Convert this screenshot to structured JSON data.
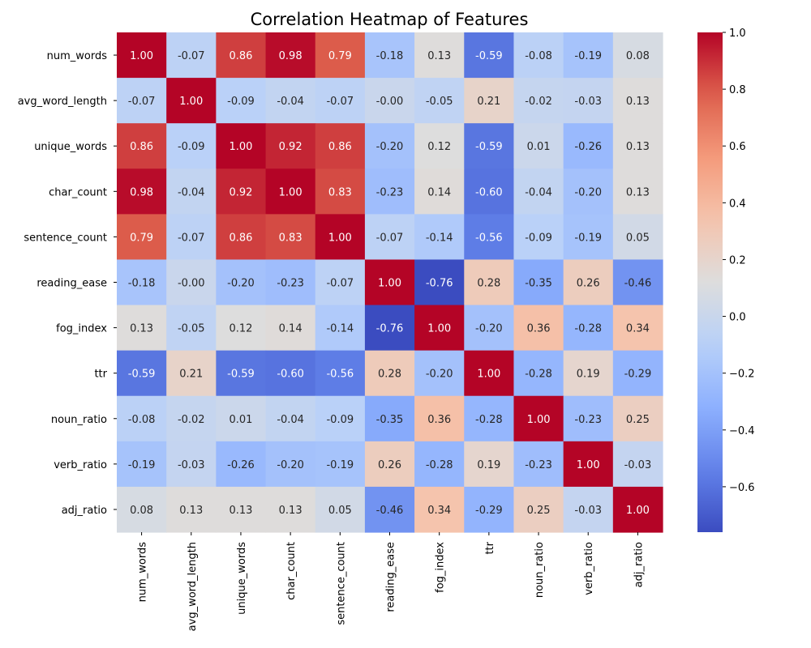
{
  "chart_data": {
    "type": "heatmap",
    "title": "Correlation Heatmap of Features",
    "xlabel": "",
    "ylabel": "",
    "colormap": "coolwarm",
    "rows": [
      "num_words",
      "avg_word_length",
      "unique_words",
      "char_count",
      "sentence_count",
      "reading_ease",
      "fog_index",
      "ttr",
      "noun_ratio",
      "verb_ratio",
      "adj_ratio"
    ],
    "columns": [
      "num_words",
      "avg_word_length",
      "unique_words",
      "char_count",
      "sentence_count",
      "reading_ease",
      "fog_index",
      "ttr",
      "noun_ratio",
      "verb_ratio",
      "adj_ratio"
    ],
    "values": [
      [
        1.0,
        -0.07,
        0.86,
        0.98,
        0.79,
        -0.18,
        0.13,
        -0.59,
        -0.08,
        -0.19,
        0.08
      ],
      [
        -0.07,
        1.0,
        -0.09,
        -0.04,
        -0.07,
        -0.0,
        -0.05,
        0.21,
        -0.02,
        -0.03,
        0.13
      ],
      [
        0.86,
        -0.09,
        1.0,
        0.92,
        0.86,
        -0.2,
        0.12,
        -0.59,
        0.01,
        -0.26,
        0.13
      ],
      [
        0.98,
        -0.04,
        0.92,
        1.0,
        0.83,
        -0.23,
        0.14,
        -0.6,
        -0.04,
        -0.2,
        0.13
      ],
      [
        0.79,
        -0.07,
        0.86,
        0.83,
        1.0,
        -0.07,
        -0.14,
        -0.56,
        -0.09,
        -0.19,
        0.05
      ],
      [
        -0.18,
        -0.0,
        -0.2,
        -0.23,
        -0.07,
        1.0,
        -0.76,
        0.28,
        -0.35,
        0.26,
        -0.46
      ],
      [
        0.13,
        -0.05,
        0.12,
        0.14,
        -0.14,
        -0.76,
        1.0,
        -0.2,
        0.36,
        -0.28,
        0.34
      ],
      [
        -0.59,
        0.21,
        -0.59,
        -0.6,
        -0.56,
        0.28,
        -0.2,
        1.0,
        -0.28,
        0.19,
        -0.29
      ],
      [
        -0.08,
        -0.02,
        0.01,
        -0.04,
        -0.09,
        -0.35,
        0.36,
        -0.28,
        1.0,
        -0.23,
        0.25
      ],
      [
        -0.19,
        -0.03,
        -0.26,
        -0.2,
        -0.19,
        0.26,
        -0.28,
        0.19,
        -0.23,
        1.0,
        -0.03
      ],
      [
        0.08,
        0.13,
        0.13,
        0.13,
        0.05,
        -0.46,
        0.34,
        -0.29,
        0.25,
        -0.03,
        1.0
      ]
    ],
    "cell_text": [
      [
        "1.00",
        "-0.07",
        "0.86",
        "0.98",
        "0.79",
        "-0.18",
        "0.13",
        "-0.59",
        "-0.08",
        "-0.19",
        "0.08"
      ],
      [
        "-0.07",
        "1.00",
        "-0.09",
        "-0.04",
        "-0.07",
        "-0.00",
        "-0.05",
        "0.21",
        "-0.02",
        "-0.03",
        "0.13"
      ],
      [
        "0.86",
        "-0.09",
        "1.00",
        "0.92",
        "0.86",
        "-0.20",
        "0.12",
        "-0.59",
        "0.01",
        "-0.26",
        "0.13"
      ],
      [
        "0.98",
        "-0.04",
        "0.92",
        "1.00",
        "0.83",
        "-0.23",
        "0.14",
        "-0.60",
        "-0.04",
        "-0.20",
        "0.13"
      ],
      [
        "0.79",
        "-0.07",
        "0.86",
        "0.83",
        "1.00",
        "-0.07",
        "-0.14",
        "-0.56",
        "-0.09",
        "-0.19",
        "0.05"
      ],
      [
        "-0.18",
        "-0.00",
        "-0.20",
        "-0.23",
        "-0.07",
        "1.00",
        "-0.76",
        "0.28",
        "-0.35",
        "0.26",
        "-0.46"
      ],
      [
        "0.13",
        "-0.05",
        "0.12",
        "0.14",
        "-0.14",
        "-0.76",
        "1.00",
        "-0.20",
        "0.36",
        "-0.28",
        "0.34"
      ],
      [
        "-0.59",
        "0.21",
        "-0.59",
        "-0.60",
        "-0.56",
        "0.28",
        "-0.20",
        "1.00",
        "-0.28",
        "0.19",
        "-0.29"
      ],
      [
        "-0.08",
        "-0.02",
        "0.01",
        "-0.04",
        "-0.09",
        "-0.35",
        "0.36",
        "-0.28",
        "1.00",
        "-0.23",
        "0.25"
      ],
      [
        "-0.19",
        "-0.03",
        "-0.26",
        "-0.20",
        "-0.19",
        "0.26",
        "-0.28",
        "0.19",
        "-0.23",
        "1.00",
        "-0.03"
      ],
      [
        "0.08",
        "0.13",
        "0.13",
        "0.13",
        "0.05",
        "-0.46",
        "0.34",
        "-0.29",
        "0.25",
        "-0.03",
        "1.00"
      ]
    ],
    "colorbar": {
      "range": [
        -0.76,
        1.0
      ],
      "ticks": [
        1.0,
        0.8,
        0.6,
        0.4,
        0.2,
        0.0,
        -0.2,
        -0.4,
        -0.6
      ],
      "tick_labels": [
        "1.0",
        "0.8",
        "0.6",
        "0.4",
        "0.2",
        "0.0",
        "−0.2",
        "−0.4",
        "−0.6"
      ]
    }
  }
}
